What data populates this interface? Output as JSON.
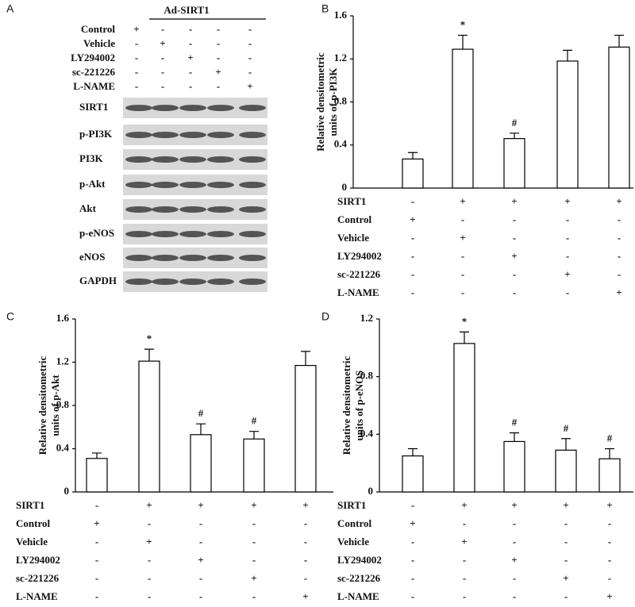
{
  "blot": {
    "panel": "A",
    "header": "Ad-SIRT1",
    "treatments": [
      {
        "label": "Control",
        "signs": [
          "+",
          "-",
          "-",
          "-",
          "-"
        ]
      },
      {
        "label": "Vehicle",
        "signs": [
          "-",
          "+",
          "-",
          "-",
          "-"
        ]
      },
      {
        "label": "LY294002",
        "signs": [
          "-",
          "-",
          "+",
          "-",
          "-"
        ]
      },
      {
        "label": "sc-221226",
        "signs": [
          "-",
          "-",
          "-",
          "+",
          "-"
        ]
      },
      {
        "label": "L-NAME",
        "signs": [
          "-",
          "-",
          "-",
          "-",
          "+"
        ]
      }
    ],
    "bands": [
      "SIRT1",
      "p-PI3K",
      "PI3K",
      "p-Akt",
      "Akt",
      "p-eNOS",
      "eNOS",
      "GAPDH"
    ]
  },
  "chart_data": [
    {
      "type": "bar",
      "panel": "B",
      "ylabel": [
        "Relative   densitometric",
        "units of p-PI3K"
      ],
      "values": [
        0.27,
        1.29,
        0.46,
        1.18,
        1.31
      ],
      "errors": [
        0.06,
        0.13,
        0.05,
        0.1,
        0.11
      ],
      "annotations": [
        null,
        "*",
        "#",
        null,
        null
      ],
      "ylim": [
        0,
        1.6
      ],
      "yticks": [
        0,
        0.4,
        0.8,
        1.2,
        1.6
      ],
      "conditions": [
        {
          "label": "SIRT1",
          "signs": [
            "-",
            "+",
            "+",
            "+",
            "+"
          ]
        },
        {
          "label": "Control",
          "signs": [
            "+",
            "-",
            "-",
            "-",
            "-"
          ]
        },
        {
          "label": "Vehicle",
          "signs": [
            "-",
            "+",
            "-",
            "-",
            "-"
          ]
        },
        {
          "label": "LY294002",
          "signs": [
            "-",
            "-",
            "+",
            "-",
            "-"
          ]
        },
        {
          "label": "sc-221226",
          "signs": [
            "-",
            "-",
            "-",
            "+",
            "-"
          ]
        },
        {
          "label": "L-NAME",
          "signs": [
            "-",
            "-",
            "-",
            "-",
            "+"
          ]
        }
      ]
    },
    {
      "type": "bar",
      "panel": "C",
      "ylabel": [
        "Relative   densitometric",
        "units of p-Akt"
      ],
      "values": [
        0.31,
        1.21,
        0.53,
        0.49,
        1.17
      ],
      "errors": [
        0.05,
        0.11,
        0.1,
        0.07,
        0.13
      ],
      "annotations": [
        null,
        "*",
        "#",
        "#",
        null
      ],
      "ylim": [
        0,
        1.6
      ],
      "yticks": [
        0,
        0.4,
        0.8,
        1.2,
        1.6
      ],
      "conditions": [
        {
          "label": "SIRT1",
          "signs": [
            "-",
            "+",
            "+",
            "+",
            "+"
          ]
        },
        {
          "label": "Control",
          "signs": [
            "+",
            "-",
            "-",
            "-",
            "-"
          ]
        },
        {
          "label": "Vehicle",
          "signs": [
            "-",
            "+",
            "-",
            "-",
            "-"
          ]
        },
        {
          "label": "LY294002",
          "signs": [
            "-",
            "-",
            "+",
            "-",
            "-"
          ]
        },
        {
          "label": "sc-221226",
          "signs": [
            "-",
            "-",
            "-",
            "+",
            "-"
          ]
        },
        {
          "label": "L-NAME",
          "signs": [
            "-",
            "-",
            "-",
            "-",
            "+"
          ]
        }
      ]
    },
    {
      "type": "bar",
      "panel": "D",
      "ylabel": [
        "Relative   densitometric",
        "units of p-eNOS"
      ],
      "values": [
        0.25,
        1.03,
        0.35,
        0.29,
        0.23
      ],
      "errors": [
        0.05,
        0.08,
        0.06,
        0.08,
        0.07
      ],
      "annotations": [
        null,
        "*",
        "#",
        "#",
        "#"
      ],
      "ylim": [
        0,
        1.2
      ],
      "yticks": [
        0,
        0.4,
        0.8,
        1.2
      ],
      "conditions": [
        {
          "label": "SIRT1",
          "signs": [
            "-",
            "+",
            "+",
            "+",
            "+"
          ]
        },
        {
          "label": "Control",
          "signs": [
            "+",
            "-",
            "-",
            "-",
            "-"
          ]
        },
        {
          "label": "Vehicle",
          "signs": [
            "-",
            "+",
            "-",
            "-",
            "-"
          ]
        },
        {
          "label": "LY294002",
          "signs": [
            "-",
            "-",
            "+",
            "-",
            "-"
          ]
        },
        {
          "label": "sc-221226",
          "signs": [
            "-",
            "-",
            "-",
            "+",
            "-"
          ]
        },
        {
          "label": "L-NAME",
          "signs": [
            "-",
            "-",
            "-",
            "-",
            "+"
          ]
        }
      ]
    }
  ]
}
